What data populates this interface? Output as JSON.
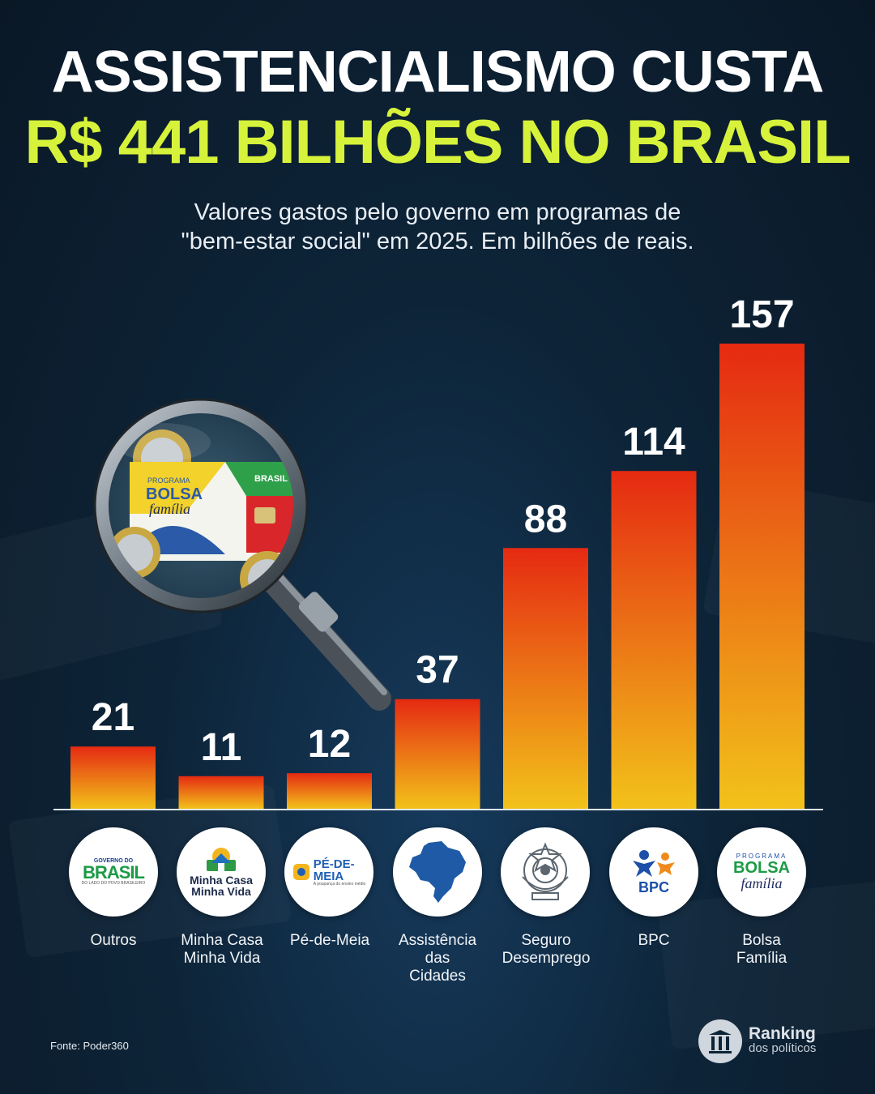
{
  "header": {
    "title_line1": "ASSISTENCIALISMO CUSTA",
    "title_line2": "R$ 441 BILHÕES NO BRASIL",
    "subtitle_line1": "Valores gastos pelo governo em programas de",
    "subtitle_line2": "\"bem-estar social\" em 2025. Em bilhões de reais."
  },
  "chart_data": {
    "type": "bar",
    "title": "ASSISTENCIALISMO CUSTA R$ 441 BILHÕES NO BRASIL",
    "subtitle": "Valores gastos pelo governo em programas de \"bem-estar social\" em 2025. Em bilhões de reais.",
    "categories": [
      "Outros",
      "Minha Casa Minha Vida",
      "Pé-de-Meia",
      "Assistência das Cidades",
      "Seguro Desemprego",
      "BPC",
      "Bolsa Família"
    ],
    "values": [
      21,
      11,
      12,
      37,
      88,
      114,
      157
    ],
    "data_labels": [
      "21",
      "11",
      "12",
      "37",
      "88",
      "114",
      "157"
    ],
    "ylim": [
      0,
      157
    ],
    "grid": false,
    "legend": "none",
    "colors": {
      "bar_top": "#e52a12",
      "bar_bottom": "#f2c21a"
    }
  },
  "categories_display": [
    {
      "lines": [
        "Outros"
      ],
      "logo": "governo-do-brasil-logo"
    },
    {
      "lines": [
        "Minha Casa",
        "Minha Vida"
      ],
      "logo": "minha-casa-minha-vida-logo"
    },
    {
      "lines": [
        "Pé-de-Meia"
      ],
      "logo": "pe-de-meia-logo"
    },
    {
      "lines": [
        "Assistência",
        "das",
        "Cidades"
      ],
      "logo": "brazil-map-icon"
    },
    {
      "lines": [
        "Seguro",
        "Desemprego"
      ],
      "logo": "coat-of-arms-icon"
    },
    {
      "lines": [
        "BPC"
      ],
      "logo": "bpc-logo"
    },
    {
      "lines": [
        "Bolsa",
        "Família"
      ],
      "logo": "bolsa-familia-logo"
    }
  ],
  "logos": {
    "gov_small": "GOVERNO DO",
    "gov_big": "BRASIL",
    "gov_tag": "DO LADO DO POVO BRASILEIRO",
    "mcmv_l1": "Minha Casa",
    "mcmv_l2": "Minha Vida",
    "pdm_l1": "PÉ-DE-",
    "pdm_l2": "MEIA",
    "pdm_tag": "A poupança do ensino médio",
    "bpc": "BPC",
    "bf_small": "PROGRAMA",
    "bf_big": "BOLSA",
    "bf_script": "família",
    "card_small": "PROGRAMA",
    "card_big": "BOLSA",
    "card_script": "família",
    "card_brasil": "BRASIL"
  },
  "footer": {
    "source": "Fonte: Poder360",
    "brand_name": "Ranking",
    "brand_sub": "dos políticos"
  }
}
